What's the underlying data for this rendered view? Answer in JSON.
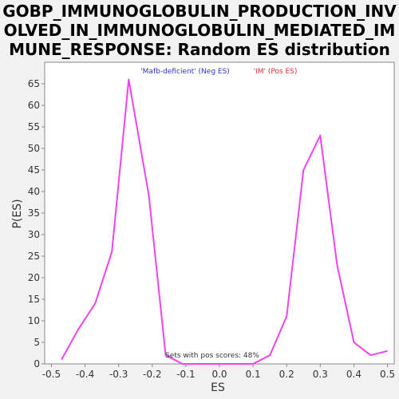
{
  "title_lines": [
    "GOBP_IMMUNOGLOBULIN_PRODUCTION_INV",
    "OLVED_IN_IMMUNOGLOBULIN_MEDIATED_IM",
    "MUNE_RESPONSE: Random ES distribution"
  ],
  "legend": {
    "neg": "'Mafb-deficient' (Neg ES)",
    "pos": "'IM' (Pos ES)",
    "neg_color": "#3333cc",
    "pos_color": "#dd3333"
  },
  "note": "Sets with pos scores: 48%",
  "colors": {
    "line": "#ee44ee",
    "plot_bg": "#ffffff"
  },
  "chart_data": {
    "type": "line",
    "xlabel": "ES",
    "ylabel": "P(ES)",
    "xlim": [
      -0.52,
      0.52
    ],
    "ylim": [
      0,
      70
    ],
    "xticks": [
      -0.5,
      -0.4,
      -0.3,
      -0.2,
      -0.1,
      0.0,
      0.1,
      0.2,
      0.3,
      0.4,
      0.5
    ],
    "xtick_labels": [
      "-0.5",
      "-0.4",
      "-0.3",
      "-0.2",
      "-0.1",
      "0.0",
      "0.1",
      "0.2",
      "0.3",
      "0.4",
      "0.5"
    ],
    "yticks": [
      0,
      5,
      10,
      15,
      20,
      25,
      30,
      35,
      40,
      45,
      50,
      55,
      60,
      65
    ],
    "ytick_labels": [
      "0",
      "5",
      "10",
      "15",
      "20",
      "25",
      "30",
      "35",
      "40",
      "45",
      "50",
      "55",
      "60",
      "65"
    ],
    "grid": false,
    "series": [
      {
        "x": [
          -0.47,
          -0.42,
          -0.37,
          -0.32,
          -0.27,
          -0.21,
          -0.16,
          -0.11,
          -0.06,
          0.0,
          0.05,
          0.1,
          0.15,
          0.2,
          0.25,
          0.3,
          0.35,
          0.4,
          0.45,
          0.5
        ],
        "y": [
          1,
          8,
          14,
          26,
          66,
          39,
          2,
          0,
          0,
          0,
          0,
          0,
          2,
          11,
          45,
          53,
          23,
          5,
          2,
          3
        ]
      }
    ]
  }
}
